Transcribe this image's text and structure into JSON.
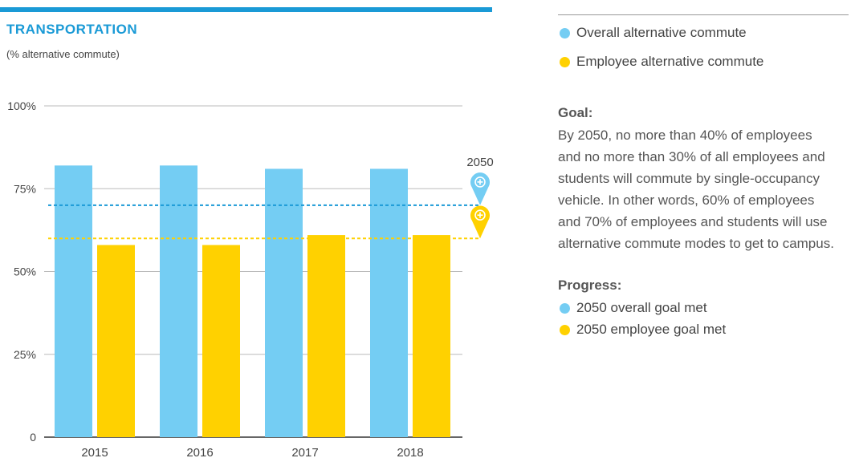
{
  "header": {
    "title": "TRANSPORTATION",
    "subtitle": "(% alternative commute)"
  },
  "legend": [
    {
      "label": "Overall alternative commute",
      "color": "#74cdf3"
    },
    {
      "label": "Employee alternative commute",
      "color": "#ffd100"
    }
  ],
  "goal": {
    "heading": "Goal:",
    "lines": [
      "By 2050, no more than 40% of employees",
      "and no more than 30% of all employees and",
      "students will commute by single-occupancy",
      "vehicle. In other words, 60% of employees",
      "and 70% of employees and students will use",
      "alternative commute modes to get to campus."
    ]
  },
  "progress": {
    "heading": "Progress:",
    "items": [
      {
        "label": "2050 overall goal met",
        "color": "#74cdf3"
      },
      {
        "label": "2050 employee goal met",
        "color": "#ffd100"
      }
    ]
  },
  "chart_data": {
    "type": "bar",
    "categories": [
      "2015",
      "2016",
      "2017",
      "2018"
    ],
    "series": [
      {
        "name": "Overall alternative commute",
        "values": [
          82,
          82,
          81,
          81
        ],
        "color": "#74cdf3"
      },
      {
        "name": "Employee alternative commute",
        "values": [
          58,
          58,
          61,
          61
        ],
        "color": "#ffd100"
      }
    ],
    "ylim": [
      0,
      100
    ],
    "yticks": [
      0,
      25,
      50,
      75,
      100
    ],
    "ytick_labels": [
      "0",
      "25%",
      "50%",
      "75%",
      "100%"
    ],
    "goals": [
      {
        "value": 70,
        "color": "#1a9ad6"
      },
      {
        "value": 60,
        "color": "#ffd100"
      }
    ],
    "goal_marker_label": "2050",
    "grid": true
  }
}
